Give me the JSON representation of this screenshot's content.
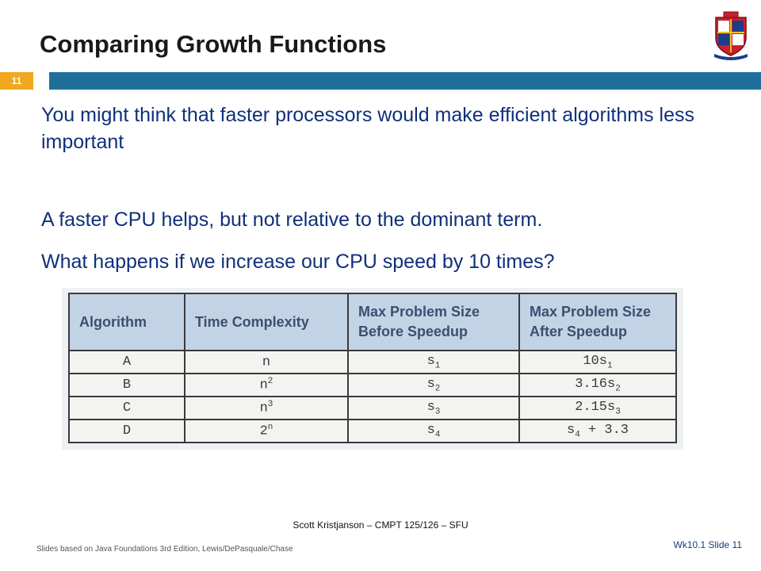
{
  "slide": {
    "title": "Comparing Growth Functions",
    "number_badge": "11",
    "colors": {
      "accent_bar": "#1f6f9a",
      "badge": "#f0a820",
      "body_text": "#10307a"
    }
  },
  "body": {
    "p1": "You might think that faster processors would make efficient algorithms less important",
    "p2": "A faster CPU helps, but not relative to the dominant term.",
    "p3": "What happens if we increase our CPU speed by 10 times?"
  },
  "table": {
    "headers": [
      "Algorithm",
      "Time Complexity",
      "Max Problem Size Before Speedup",
      "Max Problem Size After Speedup"
    ],
    "rows": [
      {
        "algorithm": "A",
        "complexity_base": "n",
        "complexity_exp": "",
        "before_base": "s",
        "before_sub": "1",
        "after_prefix": "10s",
        "after_sub": "1",
        "after_suffix": ""
      },
      {
        "algorithm": "B",
        "complexity_base": "n",
        "complexity_exp": "2",
        "before_base": "s",
        "before_sub": "2",
        "after_prefix": "3.16s",
        "after_sub": "2",
        "after_suffix": ""
      },
      {
        "algorithm": "C",
        "complexity_base": "n",
        "complexity_exp": "3",
        "before_base": "s",
        "before_sub": "3",
        "after_prefix": "2.15s",
        "after_sub": "3",
        "after_suffix": ""
      },
      {
        "algorithm": "D",
        "complexity_base": "2",
        "complexity_exp": "n",
        "before_base": "s",
        "before_sub": "4",
        "after_prefix": "s",
        "after_sub": "4",
        "after_suffix": " + 3.3"
      }
    ]
  },
  "footer": {
    "center": "Scott Kristjanson – CMPT 125/126 – SFU",
    "left": "Slides based on Java Foundations 3rd Edition, Lewis/DePasquale/Chase",
    "right": "Wk10.1  Slide 11"
  },
  "icons": {
    "crest": "university-crest-icon"
  }
}
